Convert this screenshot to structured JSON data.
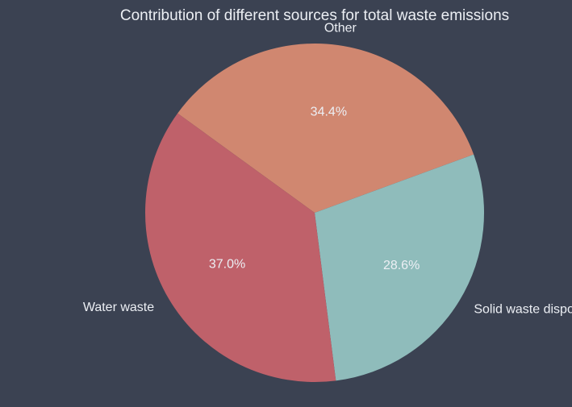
{
  "chart_data": {
    "type": "pie",
    "title": "Contribution of different sources for total waste emissions",
    "slices": [
      {
        "label": "Other",
        "value": 34.4,
        "pct_label": "34.4%",
        "color": "#d08770"
      },
      {
        "label": "Solid waste disposal",
        "value": 28.6,
        "pct_label": "28.6%",
        "color": "#8fbcbb"
      },
      {
        "label": "Water waste",
        "value": 37.0,
        "pct_label": "37.0%",
        "color": "#bf616a"
      }
    ],
    "background": "#3b4252",
    "text_color": "#eceff4"
  }
}
